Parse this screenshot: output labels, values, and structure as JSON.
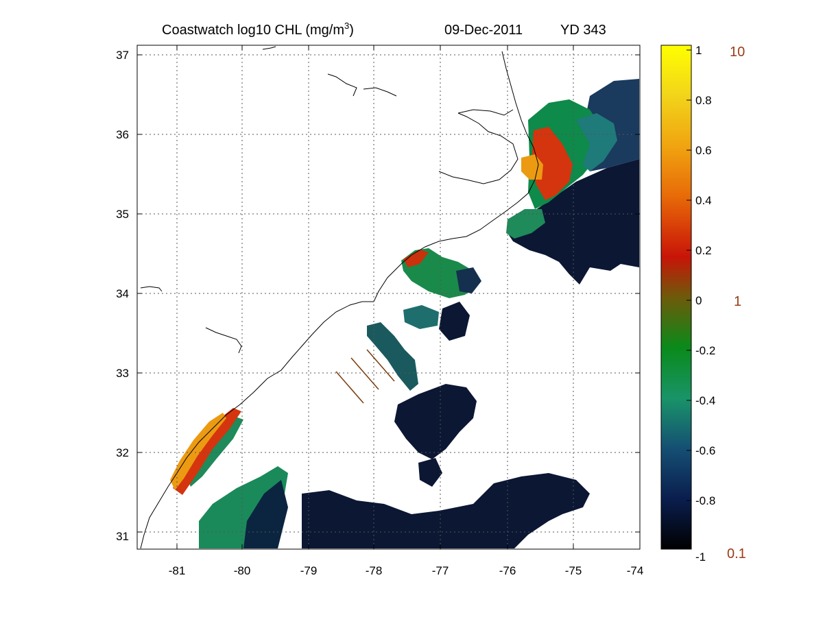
{
  "title": {
    "product": "Coastwatch  log10  CHL (mg/m",
    "unit_superscript": "3",
    "unit_close": ")",
    "date": "09-Dec-2011",
    "yearday": "YD 343"
  },
  "axes": {
    "x_ticks": [
      "-81",
      "-80",
      "-79",
      "-78",
      "-77",
      "-76",
      "-75",
      "-74"
    ],
    "y_ticks": [
      "37",
      "36",
      "35",
      "34",
      "33",
      "32",
      "31"
    ],
    "lon_range": [
      -81.6,
      -74
    ],
    "lat_range": [
      30.8,
      37.1
    ],
    "grid": "dotted"
  },
  "colorbar": {
    "ticks": [
      "1",
      "0.8",
      "0.6",
      "0.4",
      "0.2",
      "0",
      "-0.2",
      "-0.4",
      "-0.6",
      "-0.8",
      "-1"
    ],
    "range": [
      -1,
      1
    ],
    "ratio_labels": [
      "10",
      "1",
      "0.1"
    ],
    "ratio_color": "#9b3a14",
    "colormap": [
      "#000000",
      "#0a1e4e",
      "#154f73",
      "#199468",
      "#0a8a1a",
      "#6e5a0a",
      "#c81408",
      "#e86a08",
      "#f0a410",
      "#f2d41a",
      "#ffff00"
    ]
  },
  "colors": {
    "low_chl": "#0b1733",
    "mid_chl": "#0e8a4a",
    "teal_chl": "#1f8a6a",
    "high_chl": "#d4350e",
    "very_high_chl": "#ec9a12",
    "coastline": "#000000",
    "track": "#7a3a0a"
  }
}
